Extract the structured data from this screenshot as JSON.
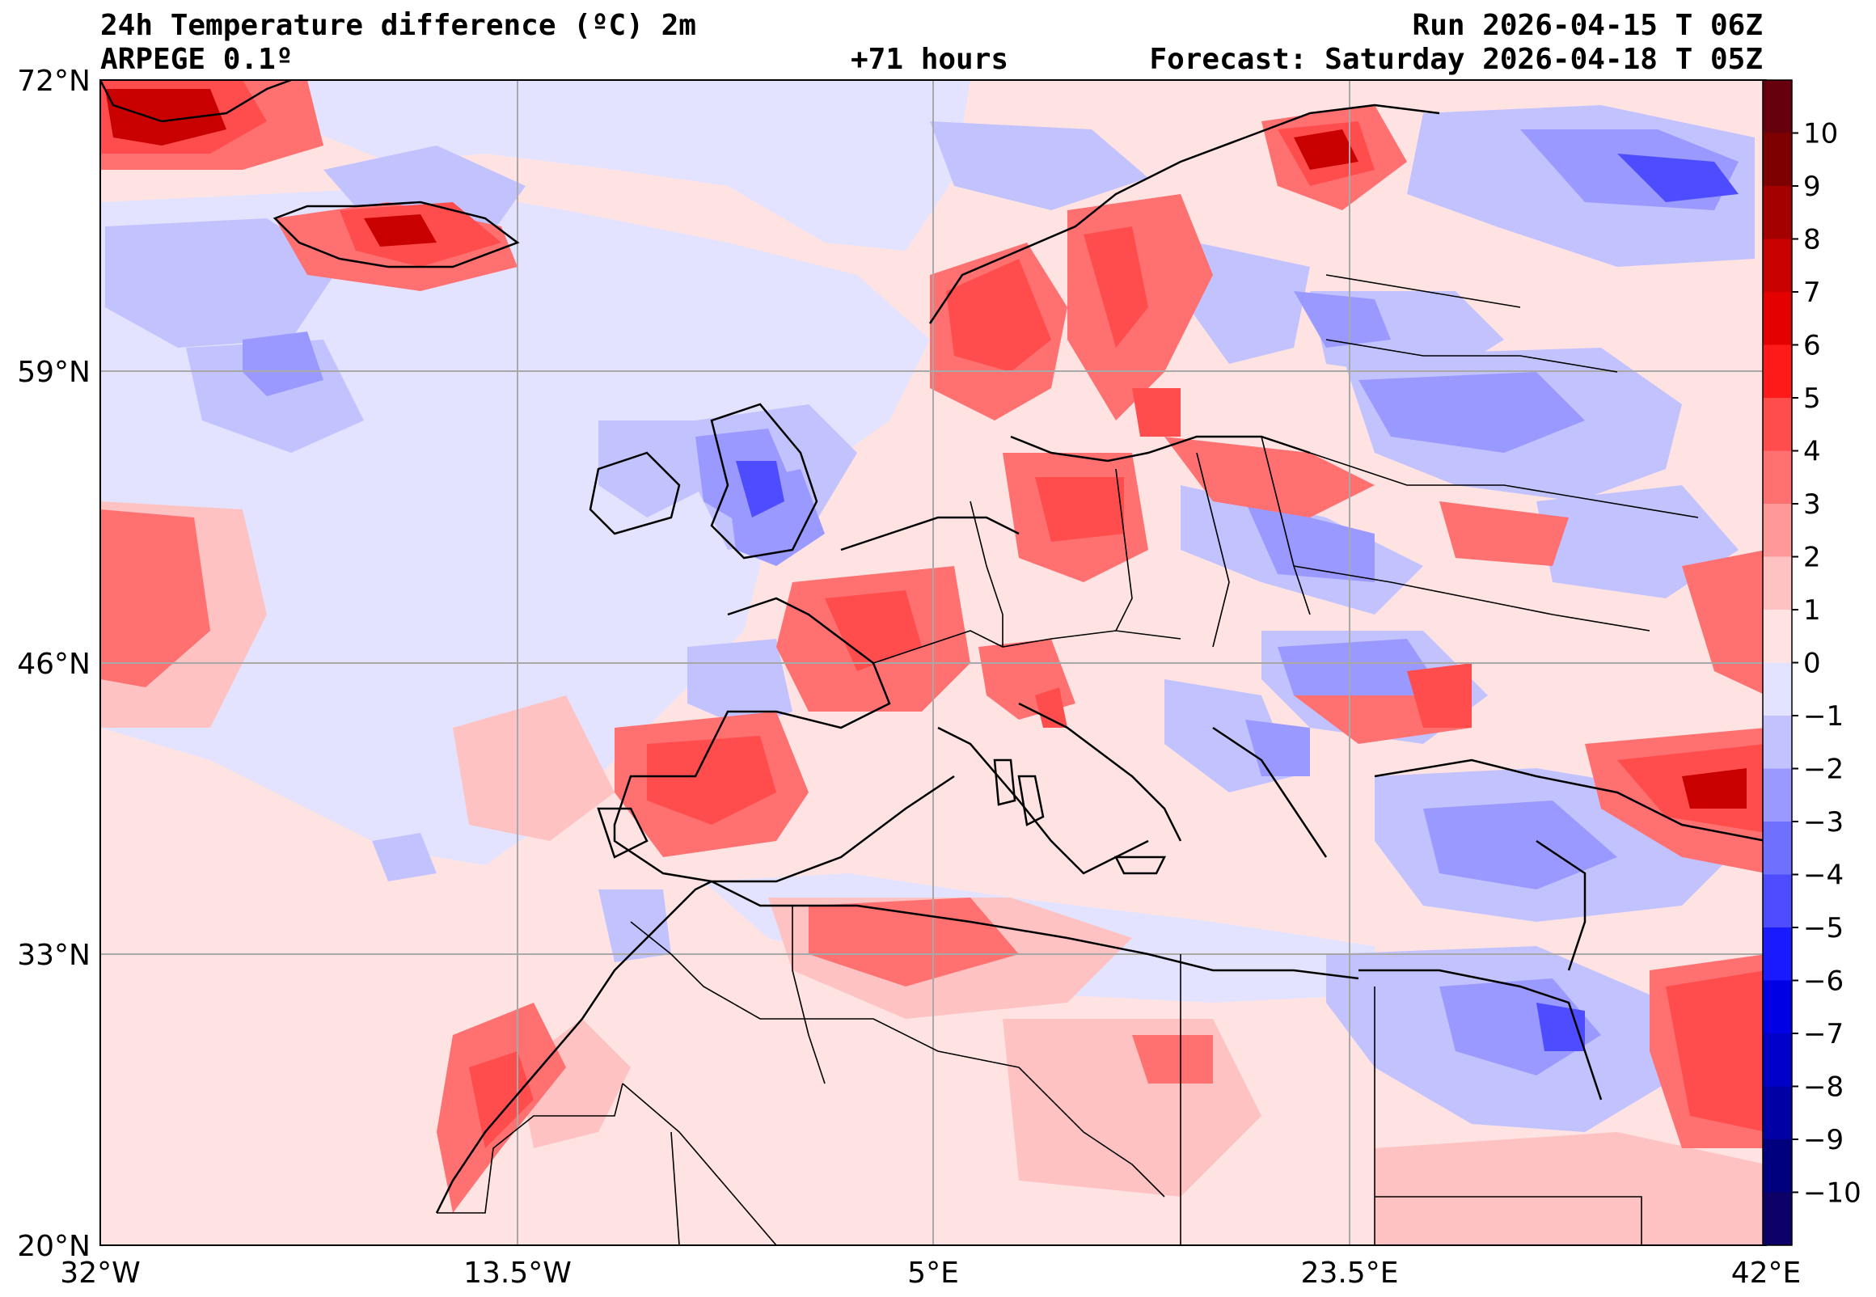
{
  "header": {
    "title": "24h Temperature difference (ºC) 2m",
    "model": "ARPEGE 0.1º",
    "lead_time": "+71 hours",
    "run": "Run 2026-04-15 T 06Z",
    "forecast": "Forecast: Saturday 2026-04-18 T 05Z"
  },
  "axes": {
    "lat_labels": [
      "72°N",
      "59°N",
      "46°N",
      "33°N",
      "20°N"
    ],
    "lon_labels": [
      "32°W",
      "13.5°W",
      "5°E",
      "23.5°E",
      "42°E"
    ]
  },
  "colorbar": {
    "tick_labels": [
      "10",
      "9",
      "8",
      "7",
      "6",
      "5",
      "4",
      "3",
      "2",
      "1",
      "0",
      "−1",
      "−2",
      "−3",
      "−4",
      "−5",
      "−6",
      "−7",
      "−8",
      "−9",
      "−10"
    ],
    "colors": [
      "#67000d",
      "#7f0000",
      "#a50000",
      "#c80000",
      "#e50000",
      "#ff1a1a",
      "#ff4d4d",
      "#ff7070",
      "#ff9999",
      "#ffc2c2",
      "#ffe3e3",
      "#e3e3ff",
      "#c2c2ff",
      "#9999ff",
      "#7070ff",
      "#4d4dff",
      "#1a1aff",
      "#0000e5",
      "#0000c8",
      "#0000a5",
      "#00007f",
      "#0d0067"
    ]
  },
  "map": {
    "background_color": "#ffe3e3",
    "ocean_color": "#e3e3ff",
    "border_color": "#000000",
    "grid_color": "#a8a8a8"
  }
}
